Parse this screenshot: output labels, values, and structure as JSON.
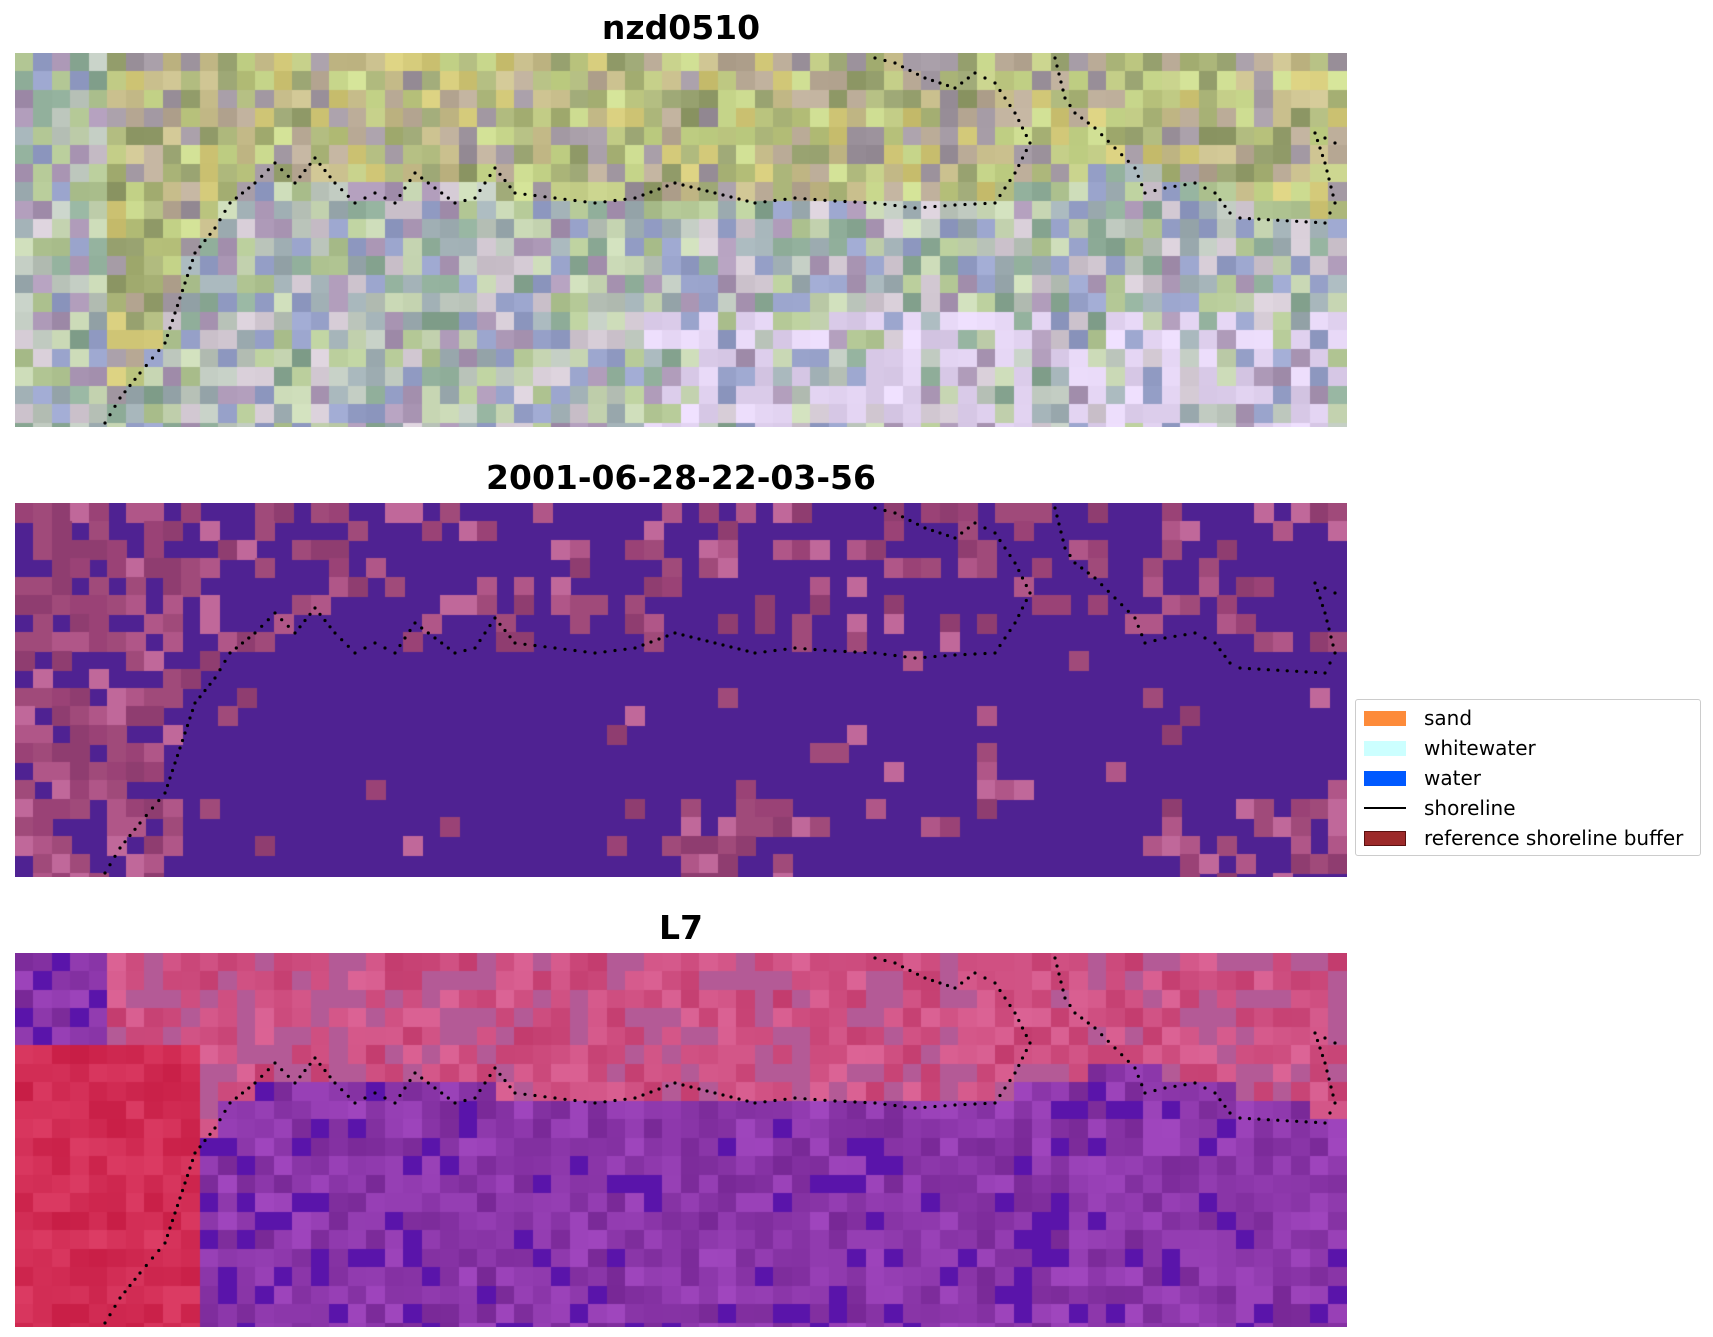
{
  "panels": [
    {
      "title": "nzd0510",
      "style": "rgb"
    },
    {
      "title": "2001-06-28-22-03-56",
      "style": "classified"
    },
    {
      "title": "L7",
      "style": "false-color"
    }
  ],
  "legend": {
    "items": [
      {
        "label": "sand",
        "color": "#fd8b3a",
        "kind": "patch"
      },
      {
        "label": "whitewater",
        "color": "#ccffff",
        "kind": "patch"
      },
      {
        "label": "water",
        "color": "#0059ff",
        "kind": "patch"
      },
      {
        "label": "shoreline",
        "color": "#000000",
        "kind": "line"
      },
      {
        "label": "reference shoreline buffer",
        "color": "#9c2a2a",
        "kind": "patch"
      }
    ]
  },
  "colors": {
    "classified_water": "#4f2292",
    "classified_land": "#a04a7a",
    "shoreline_dots": "#000000"
  }
}
